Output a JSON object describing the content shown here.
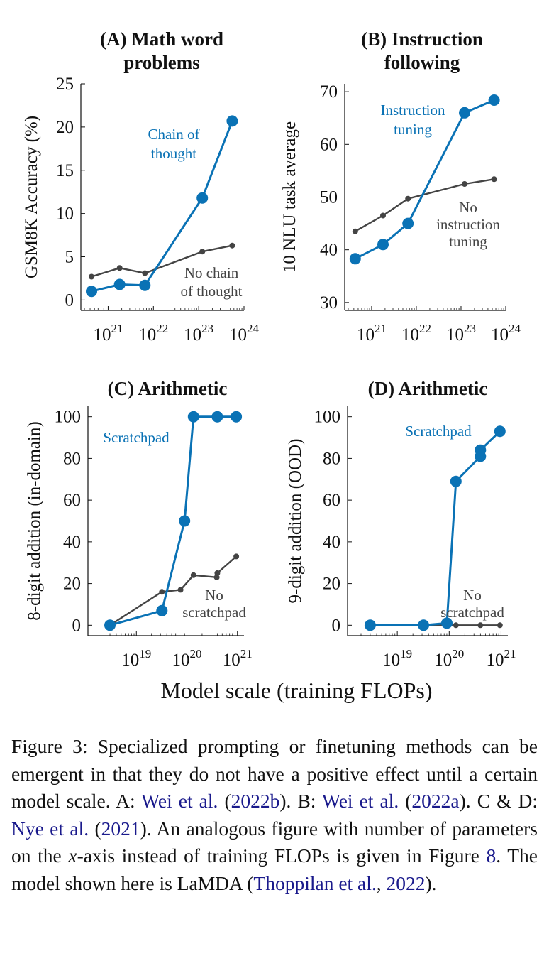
{
  "figure": {
    "shared_xlabel": "Model scale (training FLOPs)"
  },
  "chart_data": [
    {
      "id": "A",
      "type": "line",
      "title": [
        "(A) Math word",
        "problems"
      ],
      "ylabel": "GSM8K Accuracy (%)",
      "xlabel": "",
      "xscale": "log",
      "xlim": [
        2.5e+20,
        1e+24
      ],
      "ylim": [
        -1.2,
        25
      ],
      "yticks": [
        0,
        5,
        10,
        15,
        20,
        25
      ],
      "xticks": [
        {
          "value": 1e+21,
          "base": "10",
          "exp": "21"
        },
        {
          "value": 1e+22,
          "base": "10",
          "exp": "22"
        },
        {
          "value": 1e+23,
          "base": "10",
          "exp": "23"
        },
        {
          "value": 1e+24,
          "base": "10",
          "exp": "24"
        }
      ],
      "series": [
        {
          "name": "Chain of thought",
          "label_lines": [
            "Chain of",
            "thought"
          ],
          "color": "#0a72b5",
          "style": "large",
          "points": [
            [
              4.3e+20,
              1.0
            ],
            [
              1.8e+21,
              1.8
            ],
            [
              6.5e+21,
              1.7
            ],
            [
              1.2e+23,
              11.8
            ],
            [
              5.5e+23,
              20.7
            ]
          ]
        },
        {
          "name": "No chain of thought",
          "label_lines": [
            "No chain",
            "of thought"
          ],
          "color": "#444444",
          "style": "small",
          "points": [
            [
              4.3e+20,
              2.7
            ],
            [
              1.8e+21,
              3.7
            ],
            [
              6.5e+21,
              3.1
            ],
            [
              1.2e+23,
              5.6
            ],
            [
              5.5e+23,
              6.3
            ]
          ]
        }
      ]
    },
    {
      "id": "B",
      "type": "line",
      "title": [
        "(B) Instruction",
        "following"
      ],
      "ylabel": "10 NLU task average",
      "xlabel": "",
      "xscale": "log",
      "xlim": [
        2.5e+20,
        1e+24
      ],
      "ylim": [
        28.5,
        71.5
      ],
      "yticks": [
        30,
        40,
        50,
        60,
        70
      ],
      "xticks": [
        {
          "value": 1e+21,
          "base": "10",
          "exp": "21"
        },
        {
          "value": 1e+22,
          "base": "10",
          "exp": "22"
        },
        {
          "value": 1e+23,
          "base": "10",
          "exp": "23"
        },
        {
          "value": 1e+24,
          "base": "10",
          "exp": "24"
        }
      ],
      "series": [
        {
          "name": "Instruction tuning",
          "label_lines": [
            "Instruction",
            "tuning"
          ],
          "color": "#0a72b5",
          "style": "large",
          "points": [
            [
              4.3e+20,
              38.3
            ],
            [
              1.8e+21,
              41.0
            ],
            [
              6.5e+21,
              45.0
            ],
            [
              1.2e+23,
              66.0
            ],
            [
              5.5e+23,
              68.4
            ]
          ]
        },
        {
          "name": "No instruction tuning",
          "label_lines": [
            "No",
            "instruction",
            "tuning"
          ],
          "color": "#444444",
          "style": "small",
          "points": [
            [
              4.3e+20,
              43.5
            ],
            [
              1.8e+21,
              46.5
            ],
            [
              6.5e+21,
              49.7
            ],
            [
              1.2e+23,
              52.5
            ],
            [
              5.5e+23,
              53.4
            ]
          ]
        }
      ]
    },
    {
      "id": "C",
      "type": "line",
      "title": [
        "(C) Arithmetic"
      ],
      "ylabel": "8-digit addition (in-domain)",
      "xlabel": "",
      "xscale": "log",
      "xlim": [
        1.1e+18,
        1.35e+21
      ],
      "ylim": [
        -5,
        105
      ],
      "yticks": [
        0,
        20,
        40,
        60,
        80,
        100
      ],
      "xticks": [
        {
          "value": 1e+19,
          "base": "10",
          "exp": "19"
        },
        {
          "value": 1e+20,
          "base": "10",
          "exp": "20"
        },
        {
          "value": 1e+21,
          "base": "10",
          "exp": "21"
        }
      ],
      "series": [
        {
          "name": "Scratchpad",
          "label_lines": [
            "Scratchpad"
          ],
          "color": "#0a72b5",
          "style": "large",
          "points": [
            [
              3e+18,
              0
            ],
            [
              3.2e+19,
              7
            ],
            [
              9e+19,
              50
            ],
            [
              1.35e+20,
              100
            ],
            [
              4e+20,
              100
            ],
            [
              9.5e+20,
              100
            ]
          ]
        },
        {
          "name": "No scratchpad",
          "label_lines": [
            "No",
            "scratchpad"
          ],
          "color": "#444444",
          "style": "small",
          "points": [
            [
              3e+18,
              0
            ],
            [
              3.2e+19,
              16
            ],
            [
              7.5e+19,
              17
            ],
            [
              1.35e+20,
              24
            ],
            [
              3.9e+20,
              23
            ],
            [
              4e+20,
              25
            ],
            [
              9.5e+20,
              33
            ]
          ]
        }
      ]
    },
    {
      "id": "D",
      "type": "line",
      "title": [
        "(D) Arithmetic"
      ],
      "ylabel": "9-digit addition (OOD)",
      "xlabel": "",
      "xscale": "log",
      "xlim": [
        1.1e+18,
        1.35e+21
      ],
      "ylim": [
        -5,
        105
      ],
      "yticks": [
        0,
        20,
        40,
        60,
        80,
        100
      ],
      "xticks": [
        {
          "value": 1e+19,
          "base": "10",
          "exp": "19"
        },
        {
          "value": 1e+20,
          "base": "10",
          "exp": "20"
        },
        {
          "value": 1e+21,
          "base": "10",
          "exp": "21"
        }
      ],
      "series": [
        {
          "name": "Scratchpad",
          "label_lines": [
            "Scratchpad"
          ],
          "color": "#0a72b5",
          "style": "large",
          "points": [
            [
              3e+18,
              0
            ],
            [
              3.2e+19,
              0
            ],
            [
              9e+19,
              1
            ],
            [
              1.35e+20,
              69
            ],
            [
              4e+20,
              81
            ],
            [
              4e+20,
              84
            ],
            [
              9.5e+20,
              93
            ]
          ]
        },
        {
          "name": "No scratchpad",
          "label_lines": [
            "No",
            "scratchpad"
          ],
          "color": "#444444",
          "style": "small",
          "points": [
            [
              3e+18,
              0
            ],
            [
              3.2e+19,
              0
            ],
            [
              9e+19,
              0
            ],
            [
              1.35e+20,
              0
            ],
            [
              4e+20,
              0
            ],
            [
              9.5e+20,
              0
            ]
          ]
        }
      ]
    }
  ],
  "caption": {
    "figure_label": "Figure 3:",
    "text_1": "Specialized prompting or finetuning methods can be emergent in that they do not have a positive effect until a certain model scale. A: ",
    "cite_a_name": "Wei et al.",
    "cite_a_open": " (",
    "cite_a_year": "2022b",
    "cite_a_close": "). B: ",
    "cite_b_name": "Wei et al.",
    "cite_b_open": " (",
    "cite_b_year": "2022a",
    "cite_b_close": "). C & D: ",
    "cite_c_name": "Nye et al.",
    "cite_c_open": " (",
    "cite_c_year": "2021",
    "cite_c_close": "). An analogous figure with number of parameters on the ",
    "math_x": "x",
    "text_2": "-axis instead of training FLOPs is given in Figure ",
    "fig_ref": "8",
    "text_3": ". The model shown here is LaMDA (",
    "cite_d_name": "Thoppilan et al.",
    "cite_d_sep": ", ",
    "cite_d_year": "2022",
    "text_4": ")."
  }
}
